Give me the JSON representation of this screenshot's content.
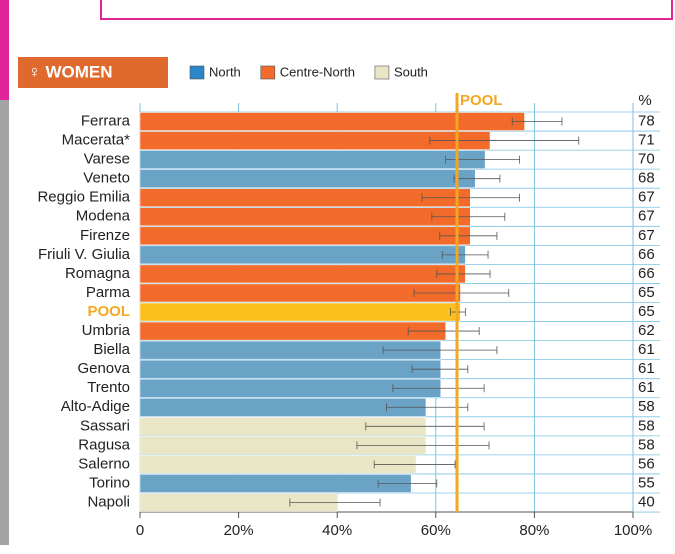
{
  "chart_data": {
    "type": "bar",
    "orientation": "horizontal",
    "title": "♀ WOMEN",
    "unit_label": "%",
    "categories": [
      "Ferrara",
      "Macerata*",
      "Varese",
      "Veneto",
      "Reggio Emilia",
      "Modena",
      "Firenze",
      "Friuli V. Giulia",
      "Romagna",
      "Parma",
      "POOL",
      "Umbria",
      "Biella",
      "Genova",
      "Trento",
      "Alto-Adige",
      "Sassari",
      "Ragusa",
      "Salerno",
      "Torino",
      "Napoli"
    ],
    "values": [
      78,
      71,
      70,
      68,
      67,
      67,
      67,
      66,
      66,
      65,
      65,
      62,
      61,
      61,
      61,
      58,
      58,
      58,
      56,
      55,
      40
    ],
    "error_low": [
      75.5,
      58.8,
      62,
      63.7,
      57.2,
      59.2,
      60.8,
      61.3,
      60.2,
      55.6,
      63,
      54.4,
      49.3,
      55.2,
      51.3,
      50,
      45.8,
      44,
      47.5,
      48.3,
      30.4
    ],
    "error_high": [
      85.6,
      89,
      77,
      73,
      77,
      74,
      72.4,
      70.6,
      71,
      74.8,
      66,
      68.8,
      72.4,
      66.5,
      69.8,
      66.5,
      69.8,
      70.8,
      63.9,
      60.2,
      48.7
    ],
    "groups": [
      "Centre-North",
      "Centre-North",
      "North",
      "North",
      "Centre-North",
      "Centre-North",
      "Centre-North",
      "North",
      "Centre-North",
      "Centre-North",
      "POOL",
      "Centre-North",
      "North",
      "North",
      "North",
      "North",
      "South",
      "South",
      "South",
      "North",
      "South"
    ],
    "legend": [
      {
        "name": "North",
        "color": "#2a86c9",
        "bar_color": "#6aa3c6"
      },
      {
        "name": "Centre-North",
        "color": "#f26b2a",
        "bar_color": "#f26b2a"
      },
      {
        "name": "South",
        "color": "#e9e6c6",
        "bar_color": "#e9e6c6"
      }
    ],
    "highlight": {
      "name": "POOL",
      "color": "#fcc01c",
      "text_color": "#f5a623"
    },
    "reference_line": {
      "label": "POOL",
      "value": 64.3,
      "color": "#f5a623"
    },
    "xlim": [
      0,
      100
    ],
    "xticks": [
      0,
      {
        "value": 20,
        "label": "20%"
      },
      {
        "value": 40,
        "label": "40%"
      },
      {
        "value": 60,
        "label": "60%"
      },
      {
        "value": 80,
        "label": "80%"
      },
      {
        "value": 100,
        "label": "100%"
      }
    ],
    "grid": true
  }
}
